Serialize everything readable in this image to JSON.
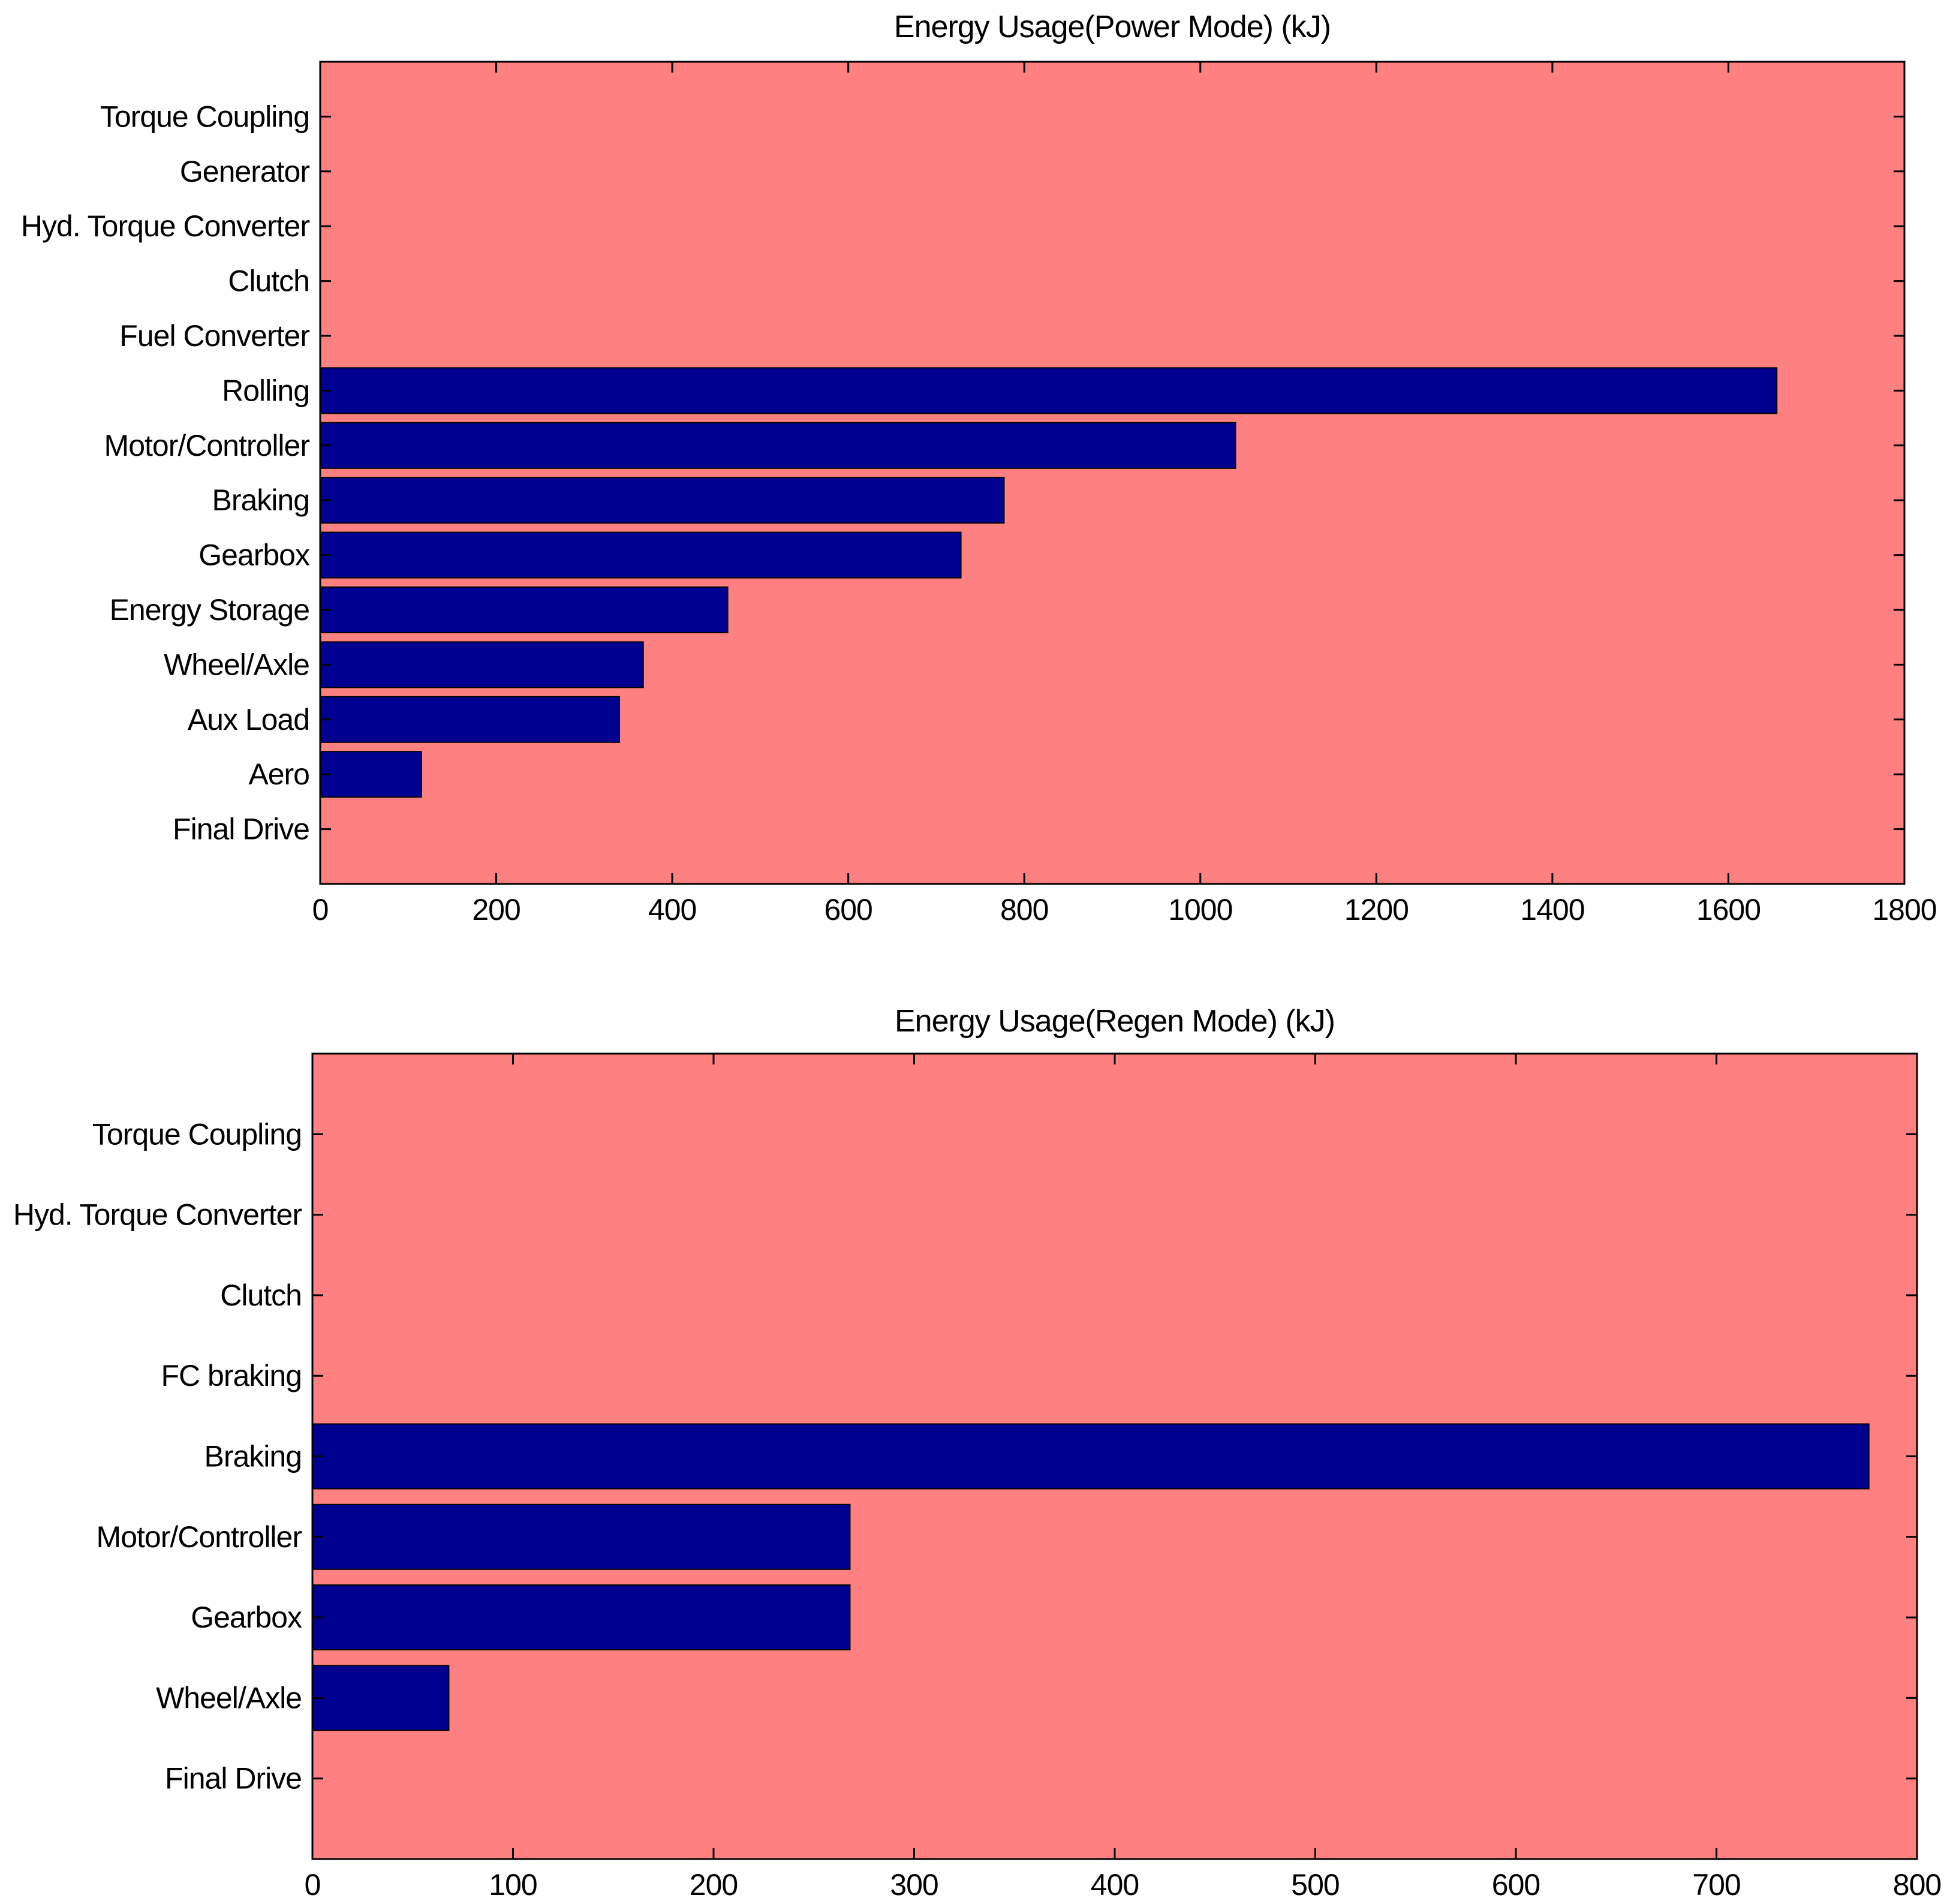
{
  "chart_data": [
    {
      "type": "bar",
      "orientation": "horizontal",
      "title": "Energy Usage(Power Mode) (kJ)",
      "xlabel": "",
      "ylabel": "",
      "xlim": [
        0,
        1800
      ],
      "xticks": [
        0,
        200,
        400,
        600,
        800,
        1000,
        1200,
        1400,
        1600,
        1800
      ],
      "categories": [
        "Torque Coupling",
        "Generator",
        "Hyd. Torque Converter",
        "Clutch",
        "Fuel Converter",
        "Rolling",
        "Motor/Controller",
        "Braking",
        "Gearbox",
        "Energy Storage",
        "Wheel/Axle",
        "Aux Load",
        "Aero",
        "Final Drive"
      ],
      "values": [
        0,
        0,
        0,
        0,
        0,
        1655,
        1040,
        777,
        728,
        463,
        367,
        340,
        115,
        0
      ],
      "grid": false,
      "colors": {
        "background": "#ff8080",
        "bar": "#000090"
      }
    },
    {
      "type": "bar",
      "orientation": "horizontal",
      "title": "Energy Usage(Regen Mode) (kJ)",
      "xlabel": "",
      "ylabel": "",
      "xlim": [
        0,
        800
      ],
      "xticks": [
        0,
        100,
        200,
        300,
        400,
        500,
        600,
        700,
        800
      ],
      "categories": [
        "Torque Coupling",
        "Hyd. Torque Converter",
        "Clutch",
        "FC braking",
        "Braking",
        "Motor/Controller",
        "Gearbox",
        "Wheel/Axle",
        "Final Drive"
      ],
      "values": [
        0,
        0,
        0,
        0,
        776,
        268,
        268,
        68,
        0
      ],
      "grid": false,
      "colors": {
        "background": "#ff8080",
        "bar": "#000090"
      }
    }
  ]
}
